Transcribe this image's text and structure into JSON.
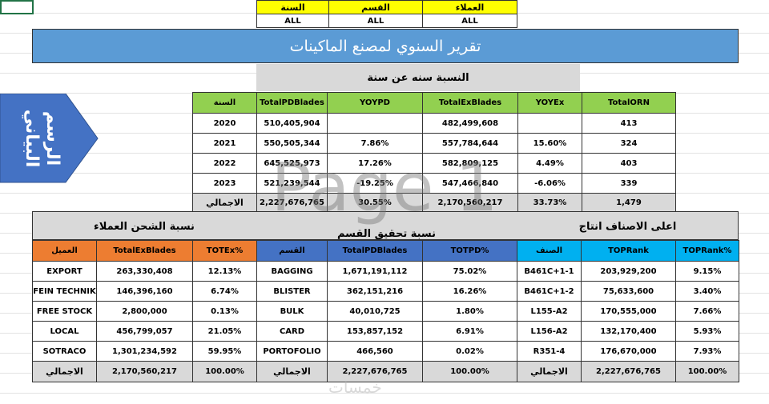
{
  "filters": {
    "headers": [
      "السنة",
      "القسم",
      "العملاء"
    ],
    "values": [
      "ALL",
      "ALL",
      "ALL"
    ]
  },
  "title": "تقرير السنوي لمصنع الماكينات",
  "side_button": "الرسم البياني",
  "yoy": {
    "title": "النسبة سنه عن سنة",
    "columns": [
      "السنة",
      "TotalPDBlades",
      "YOYPD",
      "TotalExBlades",
      "YOYEx",
      "TotalORN"
    ],
    "rows": [
      [
        "2020",
        "510,405,904",
        null,
        "482,499,608",
        null,
        "413"
      ],
      [
        "2021",
        "550,505,344",
        "7.86%",
        "557,784,644",
        "15.60%",
        "324"
      ],
      [
        "2022",
        "645,525,973",
        "17.26%",
        "582,809,125",
        "4.49%",
        "403"
      ],
      [
        "2023",
        "521,239,544",
        "-19.25%",
        "547,466,840",
        "-6.06%",
        "339"
      ]
    ],
    "total": [
      "الاجمالي",
      "2,227,676,765",
      "30.55%",
      "2,170,560,217",
      "33.73%",
      "1,479"
    ]
  },
  "sections": [
    {
      "title": "نسبة الشحن العملاء",
      "columns": [
        "العميل",
        "TotalExBlades",
        "TOTEx%"
      ],
      "rows": [
        [
          "EXPORT",
          "263,330,408",
          "12.13%"
        ],
        [
          "FEIN TECHNIK",
          "146,396,160",
          "6.74%"
        ],
        [
          "FREE STOCK",
          "2,800,000",
          "0.13%"
        ],
        [
          "LOCAL",
          "456,799,057",
          "21.05%"
        ],
        [
          "SOTRACO",
          "1,301,234,592",
          "59.95%"
        ]
      ],
      "total": [
        "الاجمالي",
        "2,170,560,217",
        "100.00%"
      ]
    },
    {
      "title": "نسبة تحقيق القسم",
      "columns": [
        "القسم",
        "TotalPDBlades",
        "TOTPD%"
      ],
      "rows": [
        [
          "BAGGING",
          "1,671,191,112",
          "75.02%"
        ],
        [
          "BLISTER",
          "362,151,216",
          "16.26%"
        ],
        [
          "BULK",
          "40,010,725",
          "1.80%"
        ],
        [
          "CARD",
          "153,857,152",
          "6.91%"
        ],
        [
          "PORTOFOLIO",
          "466,560",
          "0.02%"
        ]
      ],
      "total": [
        "الاجمالي",
        "2,227,676,765",
        "100.00%"
      ]
    },
    {
      "title": "اعلى الاصناف انتاج",
      "columns": [
        "الصنف",
        "TOPRank",
        "TOPRank%"
      ],
      "rows": [
        [
          "B461C+1-1",
          "203,929,200",
          "9.15%"
        ],
        [
          "B461C+1-2",
          "75,633,600",
          "3.40%"
        ],
        [
          "L155-A2",
          "170,555,000",
          "7.66%"
        ],
        [
          "L156-A2",
          "132,170,400",
          "5.93%"
        ],
        [
          "R351-4",
          "176,670,000",
          "7.93%"
        ]
      ],
      "total": [
        "الاجمالي",
        "2,227,676,765",
        "100.00%"
      ]
    }
  ],
  "watermarks": {
    "page": "Page 1",
    "site": "خمسات"
  }
}
